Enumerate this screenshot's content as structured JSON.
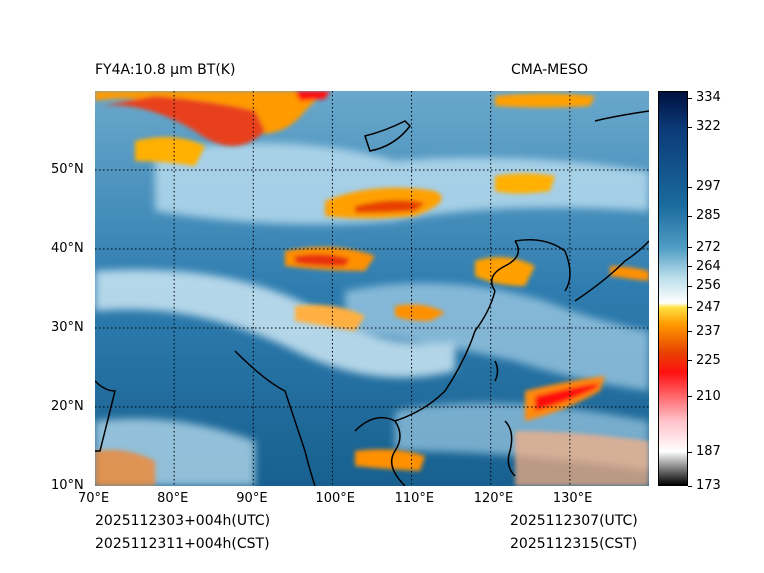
{
  "header": {
    "title_left": "FY4A:10.8 µm BT(K)",
    "title_right": "CMA-MESO"
  },
  "footer": {
    "init_utc": "2025112303+004h(UTC)",
    "init_cst": "2025112311+004h(CST)",
    "valid_utc": "2025112307(UTC)",
    "valid_cst": "2025112315(CST)"
  },
  "map": {
    "lon_range": [
      70,
      140
    ],
    "lat_range": [
      10,
      60
    ],
    "lon_ticks": [
      "70°E",
      "80°E",
      "90°E",
      "100°E",
      "110°E",
      "120°E",
      "130°E"
    ],
    "lat_ticks": [
      "10°N",
      "20°N",
      "30°N",
      "40°N",
      "50°N"
    ],
    "lon_values": [
      70,
      80,
      90,
      100,
      110,
      120,
      130
    ],
    "lat_values": [
      10,
      20,
      30,
      40,
      50
    ]
  },
  "colorbar": {
    "min": 173,
    "max": 337,
    "labels": [
      "334",
      "322",
      "297",
      "285",
      "272",
      "264",
      "256",
      "247",
      "237",
      "225",
      "210",
      "187",
      "173"
    ],
    "values": [
      334,
      322,
      297,
      285,
      272,
      264,
      256,
      247,
      237,
      225,
      210,
      187,
      173
    ],
    "colors": {
      "c173": "#000000",
      "c187": "#ffffff",
      "c200": "#ffc0c8",
      "c220": "#ff1010",
      "c228": "#e84000",
      "c240": "#ff9a00",
      "c247": "#ffe040",
      "c249": "#ffffff",
      "c260": "#b8dcea",
      "c272": "#4f9cc4",
      "c290": "#1a6a9e",
      "c322": "#0b3a78",
      "c337": "#001040"
    }
  }
}
